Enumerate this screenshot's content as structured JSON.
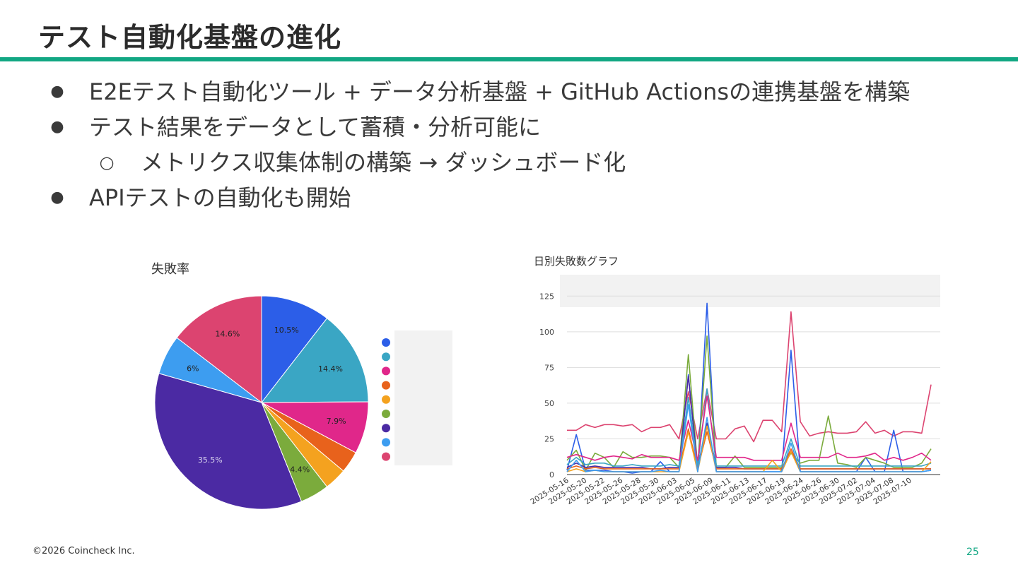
{
  "slide": {
    "title": "テスト自動化基盤の進化",
    "bullets": [
      {
        "marker": "●",
        "text": "E2Eテスト自動化ツール + データ分析基盤 + GitHub Actionsの連携基盤を構築",
        "level": 1
      },
      {
        "marker": "●",
        "text": "テスト結果をデータとして蓄積・分析可能に",
        "level": 1
      },
      {
        "marker": "○",
        "text": "メトリクス収集体制の構築 → ダッシュボード化",
        "level": 2
      },
      {
        "marker": "●",
        "text": "APIテストの自動化も開始",
        "level": 1
      }
    ],
    "footer": "©2026 Coincheck Inc.",
    "page_number": "25"
  },
  "chart_data": [
    {
      "type": "pie",
      "title": "失敗率",
      "legend_position": "right",
      "slices": [
        {
          "label": "10.5%",
          "value": 10.5,
          "color": "#2c5ee8"
        },
        {
          "label": "14.4%",
          "value": 14.4,
          "color": "#3aa6c4"
        },
        {
          "label": "7.9%",
          "value": 7.9,
          "color": "#e0278a"
        },
        {
          "label": "",
          "value": 3.3,
          "color": "#e8621c"
        },
        {
          "label": "",
          "value": 3.4,
          "color": "#f4a21f"
        },
        {
          "label": "4.4%",
          "value": 4.4,
          "color": "#7bab3c"
        },
        {
          "label": "35.5%",
          "value": 35.5,
          "color": "#4b2aa3"
        },
        {
          "label": "6%",
          "value": 6.0,
          "color": "#3d9df0"
        },
        {
          "label": "14.6%",
          "value": 14.6,
          "color": "#dc4470"
        }
      ]
    },
    {
      "type": "line",
      "title": "日別失敗数グラフ",
      "ylim": [
        0,
        140
      ],
      "yticks": [
        0,
        25,
        50,
        75,
        100,
        125
      ],
      "grid": true,
      "x_labels": [
        "2025-05-16",
        "2025-05-20",
        "2025-05-22",
        "2025-05-26",
        "2025-05-28",
        "2025-05-30",
        "2025-06-03",
        "2025-06-05",
        "2025-06-09",
        "2025-06-11",
        "2025-06-13",
        "2025-06-17",
        "2025-06-19",
        "2025-06-24",
        "2025-06-26",
        "2025-06-30",
        "2025-07-02",
        "2025-07-04",
        "2025-07-08",
        "2025-07-10"
      ],
      "series": [
        {
          "color": "#dc4470",
          "values": [
            31,
            31,
            35,
            33,
            35,
            35,
            34,
            35,
            30,
            33,
            33,
            35,
            25,
            58,
            25,
            60,
            25,
            25,
            32,
            34,
            23,
            38,
            38,
            30,
            114,
            37,
            27,
            29,
            30,
            29,
            29,
            30,
            37,
            29,
            31,
            27,
            30,
            30,
            29,
            63
          ]
        },
        {
          "color": "#2c5ee8",
          "values": [
            3,
            28,
            3,
            3,
            3,
            2,
            2,
            1,
            2,
            2,
            9,
            2,
            2,
            70,
            2,
            120,
            2,
            2,
            2,
            2,
            2,
            2,
            2,
            2,
            87,
            2,
            2,
            2,
            2,
            2,
            2,
            2,
            12,
            2,
            2,
            31,
            2,
            2,
            2,
            3
          ]
        },
        {
          "color": "#7bab3c",
          "values": [
            10,
            17,
            3,
            15,
            12,
            5,
            16,
            12,
            12,
            13,
            13,
            12,
            5,
            84,
            5,
            97,
            5,
            5,
            13,
            5,
            5,
            5,
            5,
            5,
            15,
            8,
            10,
            10,
            41,
            8,
            7,
            5,
            12,
            10,
            8,
            5,
            5,
            5,
            8,
            18
          ]
        },
        {
          "color": "#4b2aa3",
          "values": [
            5,
            8,
            5,
            6,
            5,
            5,
            5,
            5,
            5,
            4,
            4,
            5,
            5,
            69,
            5,
            36,
            5,
            5,
            5,
            4,
            4,
            4,
            4,
            4,
            16,
            4,
            4,
            4,
            4,
            4,
            4,
            4,
            4,
            4,
            4,
            4,
            4,
            4,
            4,
            4
          ]
        },
        {
          "color": "#3aa6c4",
          "values": [
            7,
            12,
            7,
            8,
            8,
            6,
            6,
            7,
            6,
            6,
            6,
            7,
            6,
            54,
            6,
            60,
            6,
            6,
            6,
            6,
            6,
            6,
            6,
            6,
            25,
            6,
            6,
            6,
            6,
            6,
            6,
            6,
            6,
            6,
            6,
            6,
            6,
            6,
            6,
            8
          ]
        },
        {
          "color": "#e0278a",
          "values": [
            12,
            14,
            12,
            10,
            12,
            13,
            12,
            11,
            14,
            12,
            12,
            12,
            10,
            38,
            10,
            55,
            12,
            12,
            12,
            12,
            10,
            10,
            10,
            10,
            36,
            12,
            12,
            12,
            12,
            15,
            12,
            12,
            13,
            15,
            10,
            12,
            10,
            12,
            15,
            10
          ]
        },
        {
          "color": "#e8621c",
          "values": [
            4,
            6,
            4,
            5,
            4,
            4,
            4,
            4,
            4,
            4,
            4,
            4,
            4,
            32,
            4,
            30,
            4,
            4,
            4,
            4,
            4,
            4,
            4,
            4,
            18,
            4,
            4,
            4,
            4,
            4,
            4,
            4,
            4,
            4,
            4,
            4,
            4,
            4,
            4,
            4
          ]
        },
        {
          "color": "#f4a21f",
          "values": [
            2,
            4,
            2,
            3,
            2,
            2,
            2,
            2,
            2,
            2,
            2,
            2,
            2,
            30,
            2,
            34,
            2,
            2,
            2,
            2,
            2,
            2,
            10,
            2,
            16,
            2,
            2,
            2,
            2,
            2,
            2,
            2,
            2,
            2,
            2,
            2,
            2,
            2,
            2,
            9
          ]
        },
        {
          "color": "#3d9df0",
          "values": [
            2,
            10,
            2,
            3,
            2,
            2,
            2,
            2,
            2,
            2,
            3,
            2,
            2,
            49,
            2,
            40,
            2,
            2,
            2,
            2,
            2,
            2,
            2,
            2,
            22,
            2,
            2,
            2,
            2,
            2,
            2,
            2,
            2,
            2,
            2,
            2,
            2,
            2,
            2,
            3
          ]
        }
      ]
    }
  ]
}
